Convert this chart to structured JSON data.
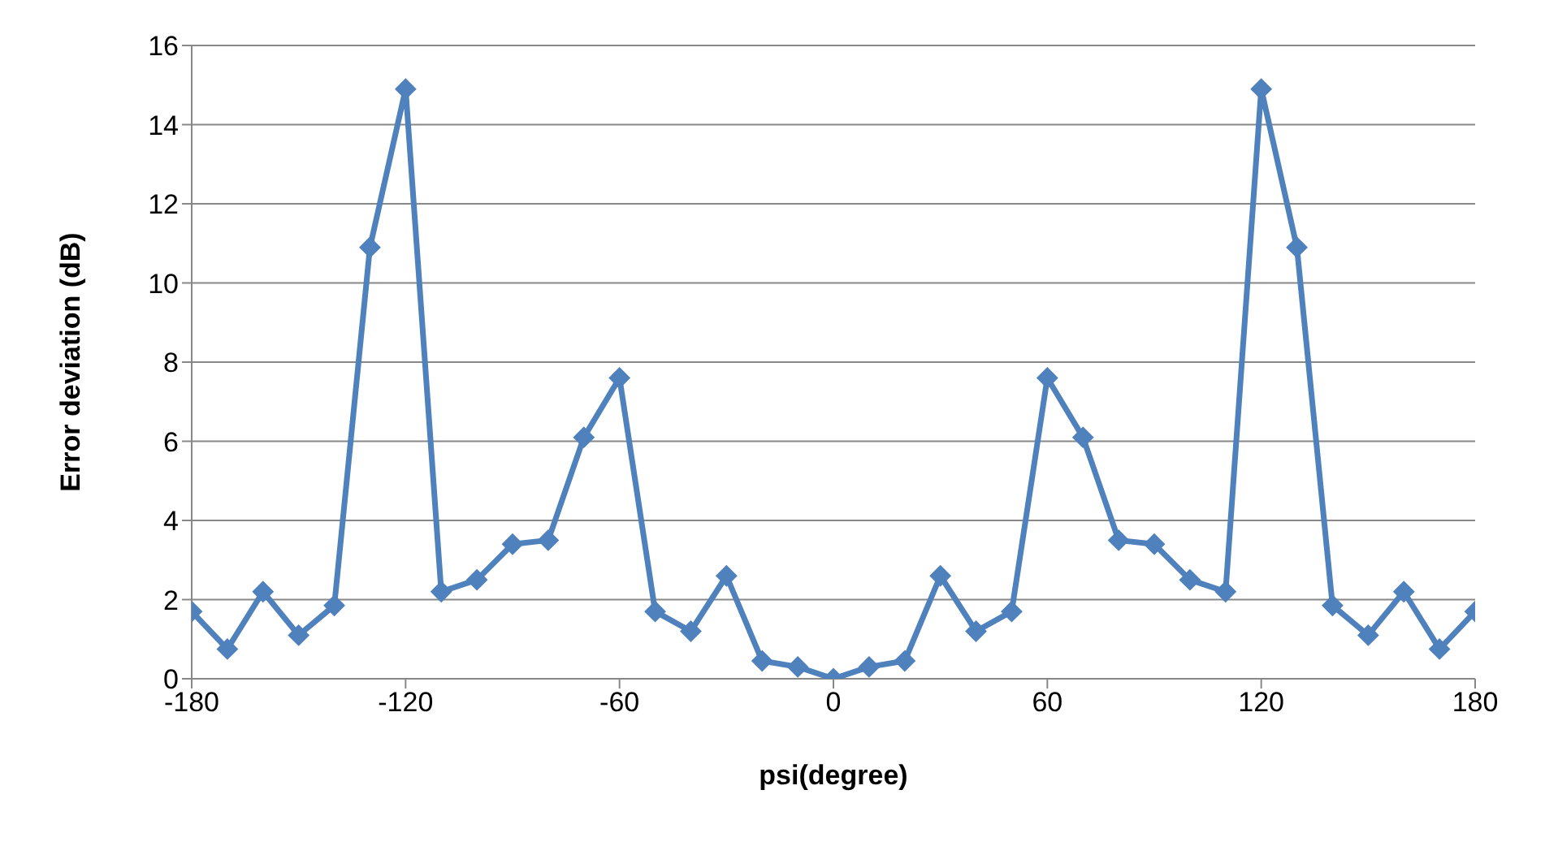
{
  "chart_data": {
    "type": "line",
    "xlabel": "psi(degree)",
    "ylabel": "Error deviation (dB)",
    "x": [
      -180,
      -170,
      -160,
      -150,
      -140,
      -130,
      -120,
      -110,
      -100,
      -90,
      -80,
      -70,
      -60,
      -50,
      -40,
      -30,
      -20,
      -10,
      0,
      10,
      20,
      30,
      40,
      50,
      60,
      70,
      80,
      90,
      100,
      110,
      120,
      130,
      140,
      150,
      160,
      170,
      180
    ],
    "series": [
      {
        "color": "#4f81bd",
        "values": [
          1.7,
          0.75,
          2.2,
          1.1,
          1.85,
          10.9,
          14.9,
          2.2,
          2.5,
          3.4,
          3.5,
          6.1,
          7.6,
          1.7,
          1.2,
          2.6,
          0.45,
          0.3,
          0,
          0.3,
          0.45,
          2.6,
          1.2,
          1.7,
          7.6,
          6.1,
          3.5,
          3.4,
          2.5,
          2.2,
          14.9,
          10.9,
          1.85,
          1.1,
          2.2,
          0.75,
          1.7
        ]
      }
    ],
    "xlim": [
      -180,
      180
    ],
    "xticks": [
      -180,
      -120,
      -60,
      0,
      60,
      120,
      180
    ],
    "ylim": [
      0,
      16
    ],
    "yticks": [
      0,
      2,
      4,
      6,
      8,
      10,
      12,
      14,
      16
    ],
    "grid": "y",
    "marker": "diamond",
    "legend": false,
    "line_style": "solid"
  }
}
